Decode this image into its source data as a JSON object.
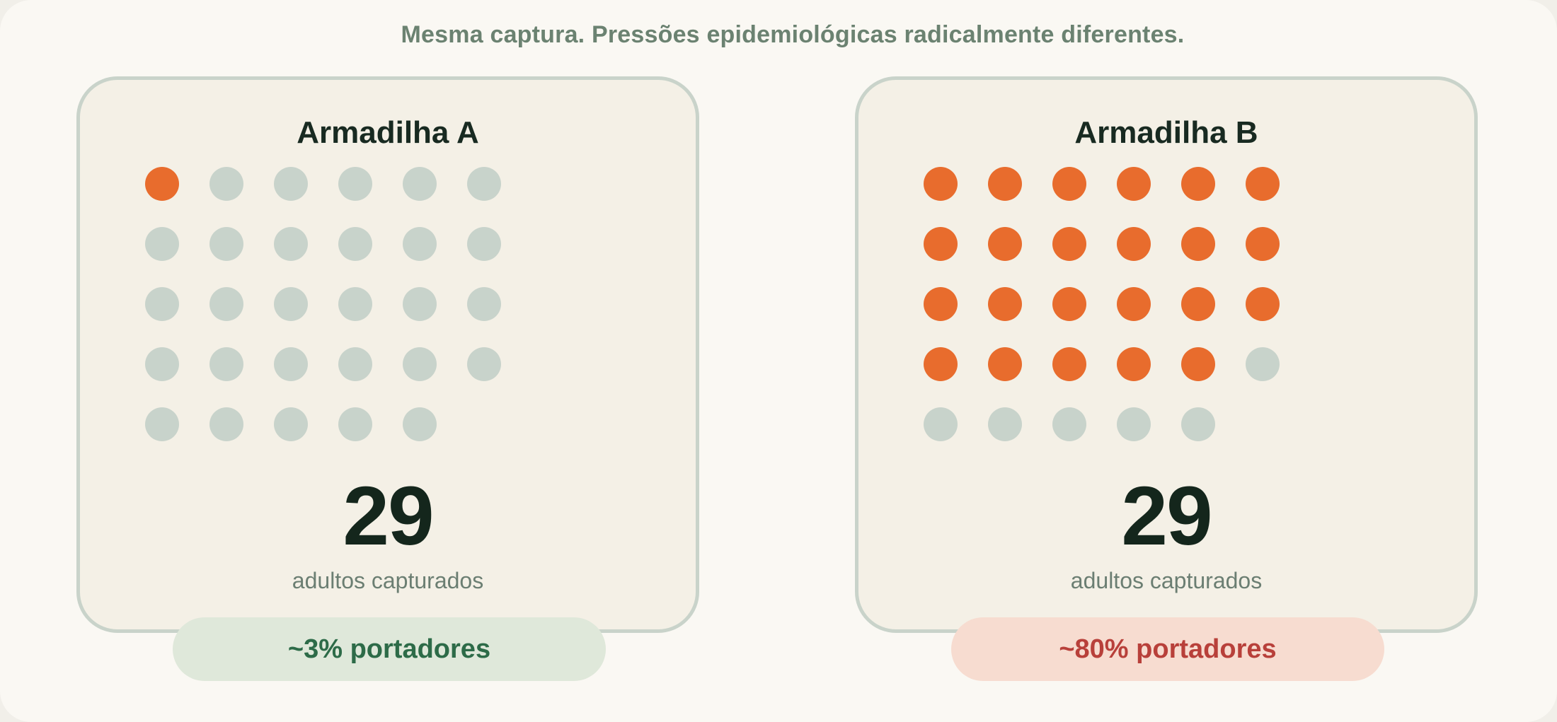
{
  "headline": "Mesma captura. Pressões epidemiológicas radicalmente diferentes.",
  "colors": {
    "carrier": "#e86c2d",
    "non_carrier": "#c8d3cb",
    "pill_a_bg": "#dfe8da",
    "pill_a_text": "#2d6b48",
    "pill_b_bg": "#f7dcd0",
    "pill_b_text": "#b8403a"
  },
  "traps": [
    {
      "title": "Armadilha A",
      "total": 29,
      "carriers": 1,
      "count": "29",
      "count_label": "adultos capturados",
      "pill": "~3% portadores"
    },
    {
      "title": "Armadilha B",
      "total": 29,
      "carriers": 23,
      "count": "29",
      "count_label": "adultos capturados",
      "pill": "~80% portadores"
    }
  ]
}
